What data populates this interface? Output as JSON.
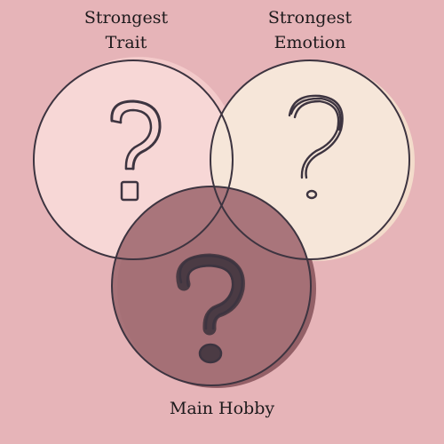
{
  "diagram": {
    "type": "venn",
    "background_color": "#e6b4b8",
    "outline_color": "#3d3440",
    "circles": [
      {
        "id": "trait",
        "label_line1": "Strongest",
        "label_line2": "Trait",
        "fill_color": "#f7d7d6",
        "shadow_color": "#f3caca",
        "icon": "question-mark-icon"
      },
      {
        "id": "emotion",
        "label_line1": "Strongest",
        "label_line2": "Emotion",
        "fill_color": "#f6e6d9",
        "shadow_color": "#f3dccb",
        "icon": "question-mark-icon"
      },
      {
        "id": "hobby",
        "label": "Main Hobby",
        "fill_color": "#a67077",
        "shadow_color": "#946067",
        "icon": "question-mark-icon"
      }
    ]
  }
}
